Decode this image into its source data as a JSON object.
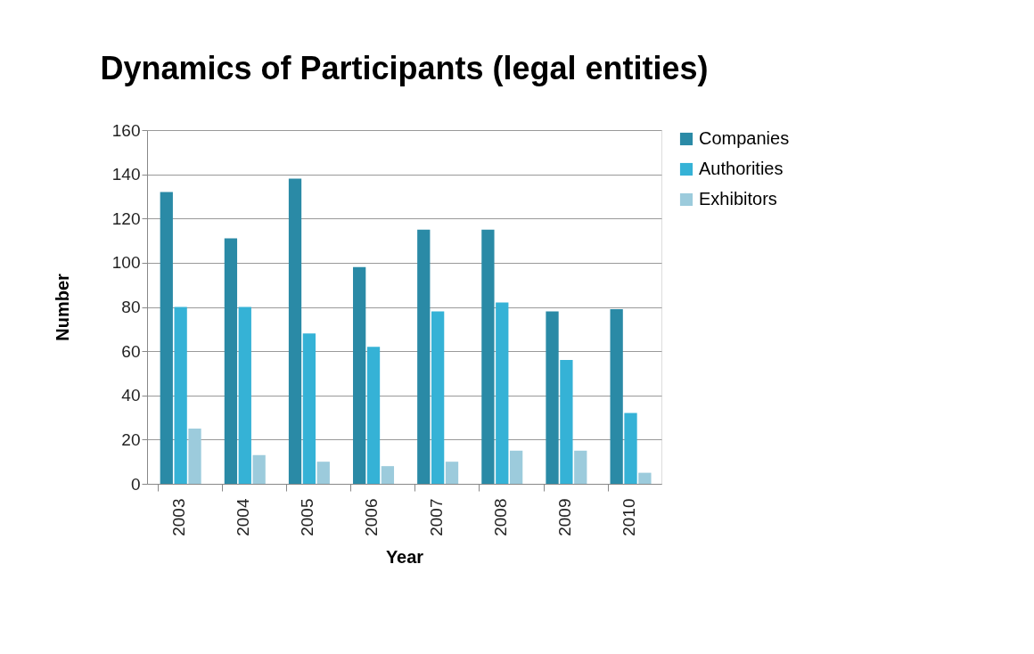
{
  "chart_data": {
    "type": "bar",
    "title": "Dynamics of Participants (legal entities)",
    "xlabel": "Year",
    "ylabel": "Number",
    "categories": [
      "2003",
      "2004",
      "2005",
      "2006",
      "2007",
      "2008",
      "2009",
      "2010"
    ],
    "series": [
      {
        "name": "Companies",
        "color": "#2a8aa6",
        "values": [
          132,
          111,
          138,
          98,
          115,
          115,
          78,
          79
        ]
      },
      {
        "name": "Authorities",
        "color": "#35b2d6",
        "values": [
          80,
          80,
          68,
          62,
          78,
          82,
          56,
          32
        ]
      },
      {
        "name": "Exhibitors",
        "color": "#9ccbdc",
        "values": [
          25,
          13,
          10,
          8,
          10,
          15,
          15,
          5
        ]
      }
    ],
    "ylim": [
      0,
      160
    ],
    "yticks": [
      0,
      20,
      40,
      60,
      80,
      100,
      120,
      140,
      160
    ],
    "grid": "y",
    "legend": "right"
  }
}
